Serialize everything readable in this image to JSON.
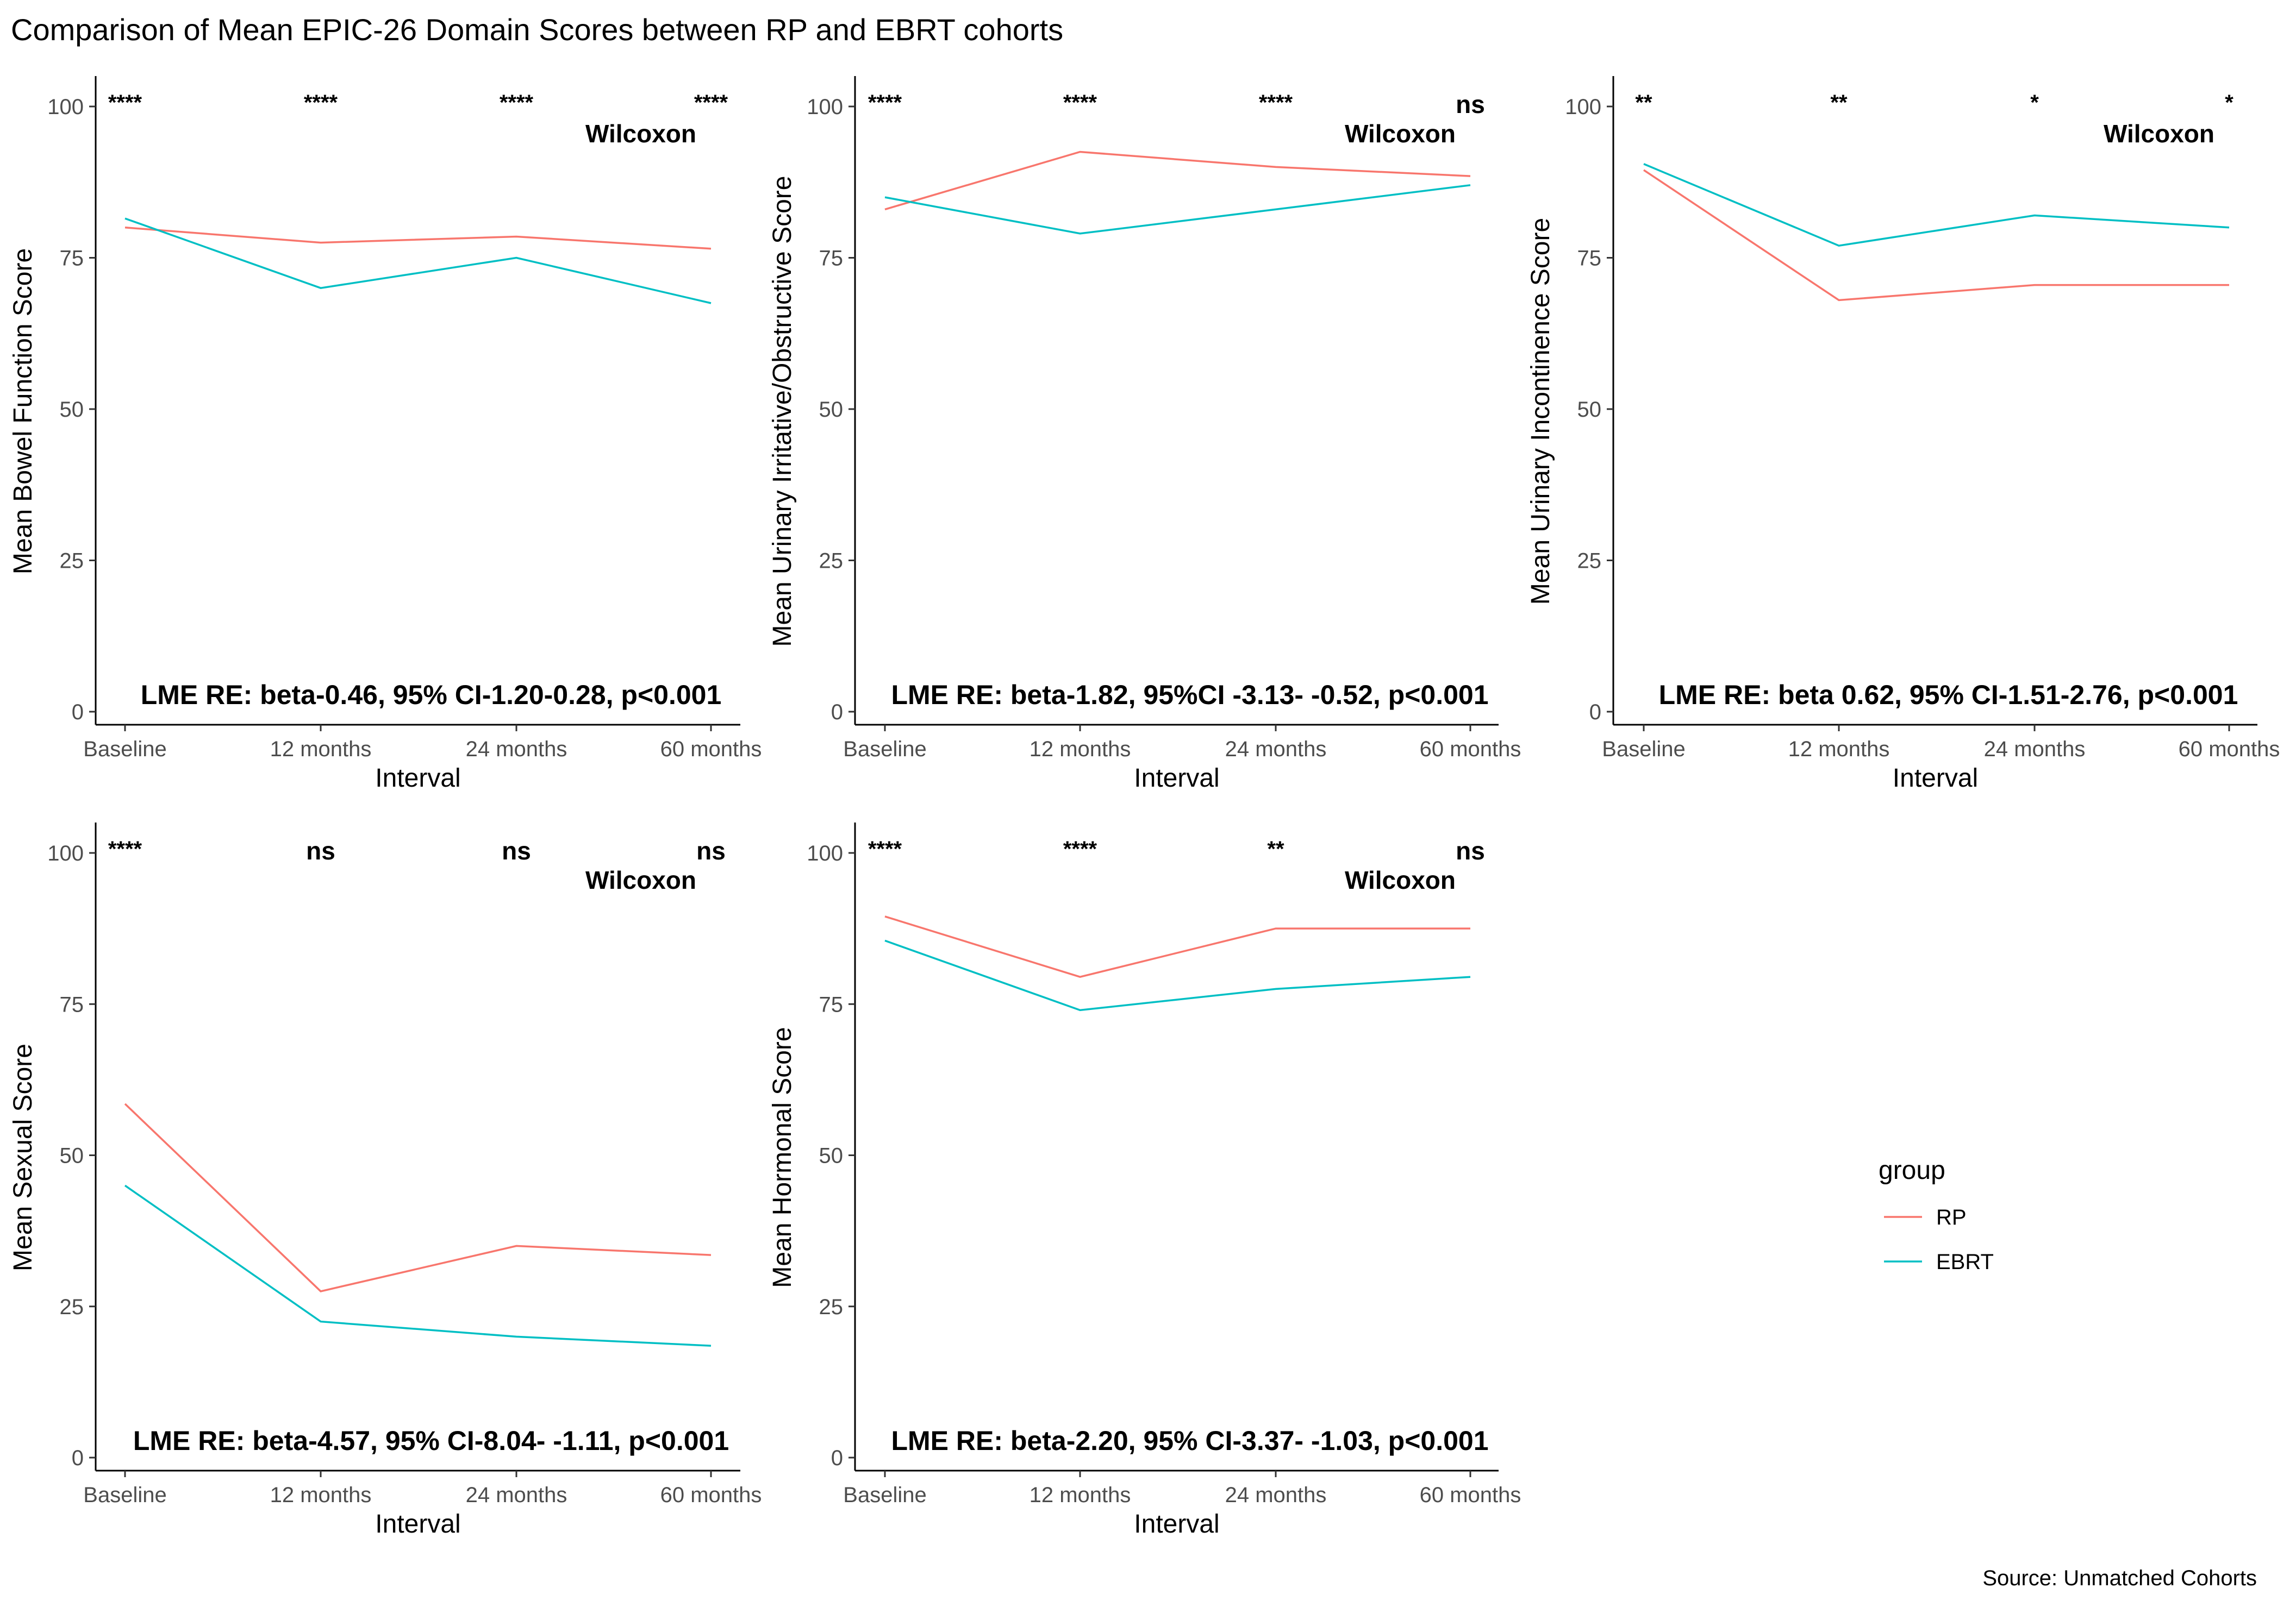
{
  "title": "Comparison of Mean EPIC-26 Domain Scores between RP and EBRT cohorts",
  "caption": "Source: Unmatched Cohorts",
  "legend": {
    "title": "group",
    "entries": [
      {
        "label": "RP",
        "color": "#F8766D"
      },
      {
        "label": "EBRT",
        "color": "#00BFC4"
      }
    ]
  },
  "chart_data": [
    {
      "type": "line",
      "xlabel": "Interval",
      "ylabel": "Mean Bowel Function Score",
      "categories": [
        "Baseline",
        "12 months",
        "24 months",
        "60 months"
      ],
      "ylim": [
        0,
        100
      ],
      "yticks": [
        0,
        25,
        50,
        75,
        100
      ],
      "series": [
        {
          "name": "RP",
          "color": "#F8766D",
          "values": [
            80,
            77.5,
            78.5,
            76.5
          ]
        },
        {
          "name": "EBRT",
          "color": "#00BFC4",
          "values": [
            81.5,
            70,
            75,
            67.5
          ]
        }
      ],
      "significance": [
        "****",
        "****",
        "****",
        "****"
      ],
      "test_label": "Wilcoxon",
      "lme_text": "LME RE: beta-0.46, 95% CI-1.20-0.28, p<0.001"
    },
    {
      "type": "line",
      "xlabel": "Interval",
      "ylabel": "Mean Urinary Irritative/Obstructive Score",
      "categories": [
        "Baseline",
        "12 months",
        "24 months",
        "60 months"
      ],
      "ylim": [
        0,
        100
      ],
      "yticks": [
        0,
        25,
        50,
        75,
        100
      ],
      "series": [
        {
          "name": "RP",
          "color": "#F8766D",
          "values": [
            83,
            92.5,
            90,
            88.5
          ]
        },
        {
          "name": "EBRT",
          "color": "#00BFC4",
          "values": [
            85,
            79,
            83,
            87
          ]
        }
      ],
      "significance": [
        "****",
        "****",
        "****",
        "ns"
      ],
      "test_label": "Wilcoxon",
      "lme_text": "LME RE: beta-1.82, 95%CI -3.13- -0.52, p<0.001"
    },
    {
      "type": "line",
      "xlabel": "Interval",
      "ylabel": "Mean Urinary Incontinence Score",
      "categories": [
        "Baseline",
        "12 months",
        "24 months",
        "60 months"
      ],
      "ylim": [
        0,
        100
      ],
      "yticks": [
        0,
        25,
        50,
        75,
        100
      ],
      "series": [
        {
          "name": "RP",
          "color": "#F8766D",
          "values": [
            89.5,
            68,
            70.5,
            70.5
          ]
        },
        {
          "name": "EBRT",
          "color": "#00BFC4",
          "values": [
            90.5,
            77,
            82,
            80
          ]
        }
      ],
      "significance": [
        "**",
        "**",
        "*",
        "*"
      ],
      "test_label": "Wilcoxon",
      "lme_text": "LME RE: beta 0.62, 95% CI-1.51-2.76, p<0.001"
    },
    {
      "type": "line",
      "xlabel": "Interval",
      "ylabel": "Mean Sexual Score",
      "categories": [
        "Baseline",
        "12 months",
        "24 months",
        "60 months"
      ],
      "ylim": [
        0,
        100
      ],
      "yticks": [
        0,
        25,
        50,
        75,
        100
      ],
      "series": [
        {
          "name": "RP",
          "color": "#F8766D",
          "values": [
            58.5,
            27.5,
            35,
            33.5
          ]
        },
        {
          "name": "EBRT",
          "color": "#00BFC4",
          "values": [
            45,
            22.5,
            20,
            18.5
          ]
        }
      ],
      "significance": [
        "****",
        "ns",
        "ns",
        "ns"
      ],
      "test_label": "Wilcoxon",
      "lme_text": "LME RE: beta-4.57, 95% CI-8.04- -1.11, p<0.001"
    },
    {
      "type": "line",
      "xlabel": "Interval",
      "ylabel": "Mean Hormonal Score",
      "categories": [
        "Baseline",
        "12 months",
        "24 months",
        "60 months"
      ],
      "ylim": [
        0,
        100
      ],
      "yticks": [
        0,
        25,
        50,
        75,
        100
      ],
      "series": [
        {
          "name": "RP",
          "color": "#F8766D",
          "values": [
            89.5,
            79.5,
            87.5,
            87.5
          ]
        },
        {
          "name": "EBRT",
          "color": "#00BFC4",
          "values": [
            85.5,
            74,
            77.5,
            79.5
          ]
        }
      ],
      "significance": [
        "****",
        "****",
        "**",
        "ns"
      ],
      "test_label": "Wilcoxon",
      "lme_text": "LME RE: beta-2.20, 95% CI-3.37- -1.03, p<0.001"
    }
  ]
}
